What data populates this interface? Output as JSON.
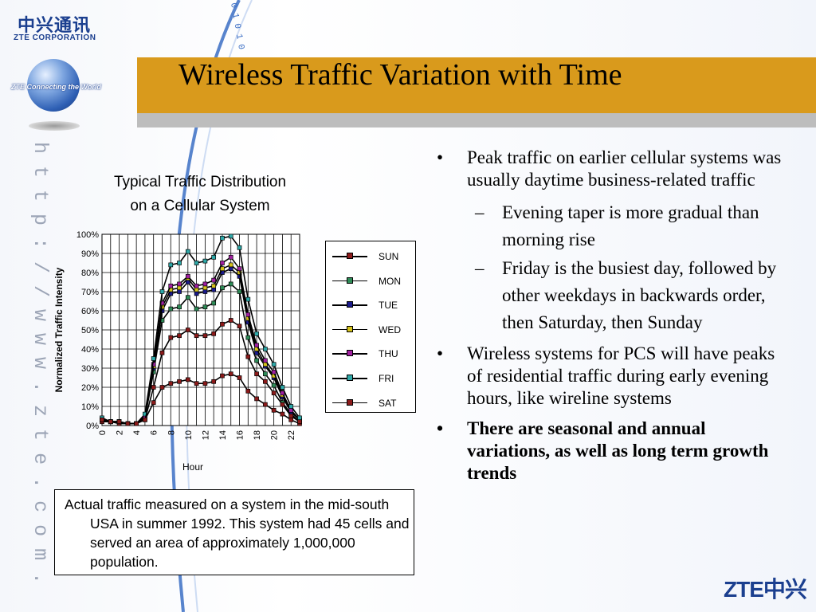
{
  "logo": {
    "cn": "中兴通讯",
    "en": "ZTE CORPORATION",
    "tagline": "ZTE Connecting the World"
  },
  "slide_title": "Wireless Traffic Variation with Time",
  "side_url": "h t t p : / / w w w . z t e . c o m . c n",
  "binary_text": "0 1 0 1 0",
  "footer_logo": "ZTE中兴",
  "chart_data": {
    "type": "line",
    "title_lines": [
      "Typical Traffic Distribution",
      "on a Cellular System"
    ],
    "xlabel": "Hour",
    "ylabel": "Normalized Traffic Intensity",
    "xlim": [
      0,
      23
    ],
    "ylim": [
      0,
      100
    ],
    "x": [
      0,
      1,
      2,
      3,
      4,
      5,
      6,
      7,
      8,
      9,
      10,
      11,
      12,
      13,
      14,
      15,
      16,
      17,
      18,
      19,
      20,
      21,
      22,
      23
    ],
    "x_tick_labels": [
      "0",
      "2",
      "4",
      "6",
      "8",
      "10",
      "12",
      "14",
      "16",
      "18",
      "20",
      "22"
    ],
    "y_tick_labels": [
      "0%",
      "10%",
      "20%",
      "30%",
      "40%",
      "50%",
      "60%",
      "70%",
      "80%",
      "90%",
      "100%"
    ],
    "grid": true,
    "legend_position": "right",
    "series": [
      {
        "name": "SUN",
        "color": "#8b1a1a",
        "values": [
          2,
          2,
          1,
          1,
          1,
          3,
          12,
          20,
          22,
          23,
          24,
          22,
          22,
          23,
          26,
          27,
          25,
          18,
          14,
          11,
          8,
          6,
          3,
          1
        ]
      },
      {
        "name": "MON",
        "color": "#2e8b57",
        "values": [
          3,
          2,
          2,
          1,
          1,
          4,
          28,
          55,
          61,
          62,
          67,
          61,
          62,
          64,
          72,
          74,
          70,
          46,
          34,
          27,
          21,
          12,
          6,
          2
        ]
      },
      {
        "name": "TUE",
        "color": "#1a1a8b",
        "values": [
          3,
          2,
          2,
          1,
          1,
          5,
          30,
          60,
          69,
          70,
          75,
          69,
          70,
          71,
          80,
          82,
          78,
          54,
          38,
          31,
          25,
          15,
          7,
          3
        ]
      },
      {
        "name": "WED",
        "color": "#d4c21a",
        "values": [
          3,
          2,
          2,
          1,
          1,
          5,
          31,
          62,
          71,
          72,
          77,
          71,
          72,
          73,
          82,
          84,
          80,
          56,
          40,
          32,
          26,
          16,
          8,
          3
        ]
      },
      {
        "name": "THU",
        "color": "#a020a0",
        "values": [
          3,
          2,
          2,
          1,
          1,
          5,
          32,
          64,
          73,
          74,
          78,
          73,
          74,
          76,
          85,
          88,
          82,
          58,
          42,
          34,
          28,
          17,
          8,
          3
        ]
      },
      {
        "name": "FRI",
        "color": "#2ea8a8",
        "values": [
          4,
          2,
          2,
          1,
          1,
          6,
          35,
          70,
          84,
          85,
          91,
          85,
          86,
          88,
          98,
          99,
          93,
          66,
          48,
          40,
          32,
          20,
          10,
          4
        ]
      },
      {
        "name": "SAT",
        "color": "#8b1a1a",
        "values": [
          3,
          2,
          2,
          1,
          1,
          3,
          20,
          38,
          46,
          47,
          50,
          47,
          47,
          48,
          53,
          55,
          52,
          36,
          27,
          23,
          17,
          11,
          5,
          2
        ]
      }
    ]
  },
  "caption": "Actual traffic measured on a system in the mid-south USA in summer 1992. This system had 45 cells and served an area of approximately 1,000,000 population.",
  "bullets": {
    "b1": "Peak traffic on earlier cellular systems was usually daytime business-related traffic",
    "b1_sub1": "Evening taper is more gradual than morning rise",
    "b1_sub2": "Friday is the busiest day, followed by other weekdays in backwards order, then Saturday, then Sunday",
    "b2": "Wireless systems for PCS will have peaks of residential traffic during early evening hours, like wireline systems",
    "b3": "There are seasonal and annual variations, as well as long term growth trends",
    "bullet_mark": "•",
    "dash_mark": "–"
  }
}
